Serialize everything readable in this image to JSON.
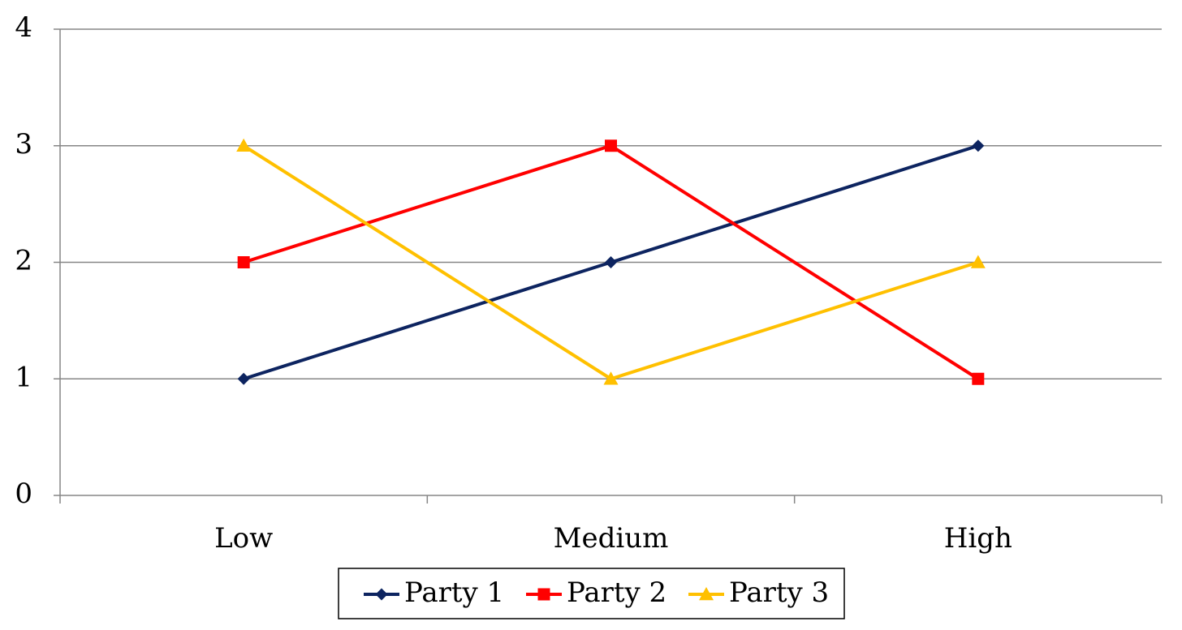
{
  "chart_data": {
    "type": "line",
    "categories": [
      "Low",
      "Medium",
      "High"
    ],
    "series": [
      {
        "name": "Party 1",
        "values": [
          1,
          2,
          3
        ],
        "color": "#0d2460",
        "marker": "diamond"
      },
      {
        "name": "Party 2",
        "values": [
          2,
          3,
          1
        ],
        "color": "#ff0000",
        "marker": "square"
      },
      {
        "name": "Party 3",
        "values": [
          3,
          1,
          2
        ],
        "color": "#ffc000",
        "marker": "triangle"
      }
    ],
    "title": "",
    "xlabel": "",
    "ylabel": "",
    "ylim": [
      0,
      4
    ],
    "yticks": [
      "0",
      "1",
      "2",
      "3",
      "4"
    ],
    "grid": true,
    "legend": "bottom"
  }
}
